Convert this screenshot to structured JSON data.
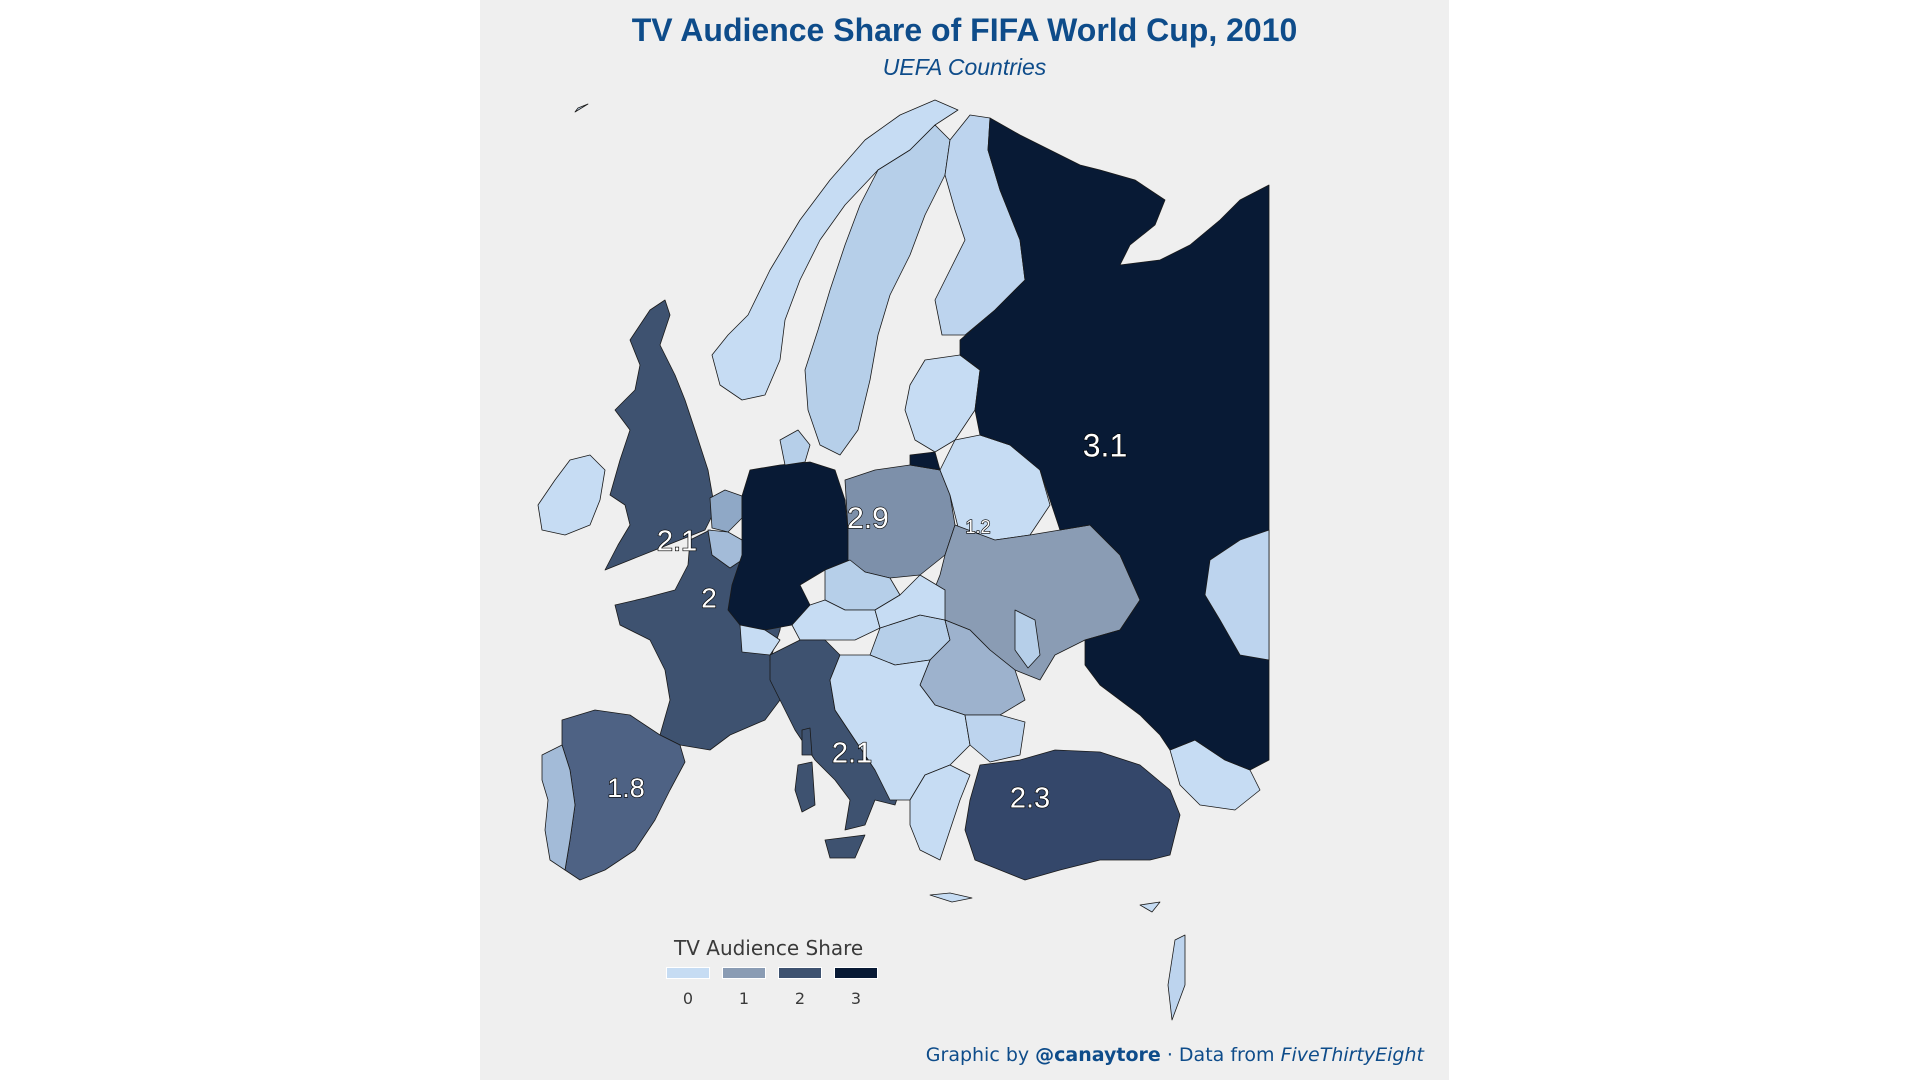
{
  "title": "TV Audience Share of FIFA World Cup, 2010",
  "subtitle": "UEFA Countries",
  "legend": {
    "title": "TV Audience Share",
    "ticks": [
      "0",
      "1",
      "2",
      "3"
    ],
    "colors": [
      "#c6dcf3",
      "#8a9cb4",
      "#3e5270",
      "#081a35"
    ]
  },
  "caption": {
    "prefix": "Graphic by ",
    "handle": "@canaytore",
    "separator": " ·  Data from ",
    "source": "FiveThirtyEight"
  },
  "regions": [
    {
      "country": "Russia",
      "label": "3.1",
      "value": 3.1
    },
    {
      "country": "Germany",
      "label": "2.9",
      "value": 2.9
    },
    {
      "country": "Turkey",
      "label": "2.3",
      "value": 2.3
    },
    {
      "country": "United Kingdom",
      "label": "2.1",
      "value": 2.1
    },
    {
      "country": "Italy",
      "label": "2.1",
      "value": 2.1
    },
    {
      "country": "France",
      "label": "2",
      "value": 2.0
    },
    {
      "country": "Spain",
      "label": "1.8",
      "value": 1.8
    },
    {
      "country": "Poland",
      "label": "1.2",
      "value": 1.2
    }
  ]
}
